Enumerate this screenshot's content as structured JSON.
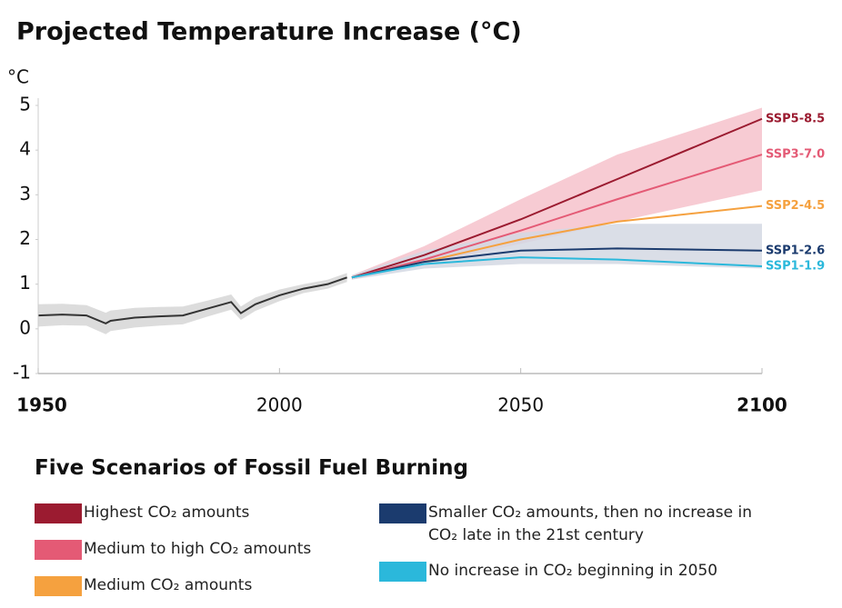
{
  "chart_data": {
    "type": "line",
    "title": "Projected Temperature Increase (°C)",
    "y_unit_label": "°C",
    "xlim": [
      1950,
      2100
    ],
    "ylim": [
      -1,
      5
    ],
    "xticks": [
      1950,
      2000,
      2050,
      2100
    ],
    "yticks": [
      5,
      4,
      3,
      2,
      1,
      0,
      -1
    ],
    "historical": {
      "color": "#333333",
      "band_color": "#dcdcdc",
      "x": [
        1950,
        1955,
        1960,
        1964,
        1965,
        1970,
        1975,
        1980,
        1985,
        1990,
        1992,
        1995,
        2000,
        2005,
        2010,
        2014
      ],
      "values": [
        0.3,
        0.32,
        0.3,
        0.12,
        0.18,
        0.25,
        0.28,
        0.3,
        0.45,
        0.6,
        0.35,
        0.55,
        0.75,
        0.9,
        1.0,
        1.15
      ],
      "lower": [
        0.05,
        0.08,
        0.07,
        -0.12,
        -0.05,
        0.03,
        0.07,
        0.1,
        0.27,
        0.43,
        0.2,
        0.4,
        0.62,
        0.8,
        0.9,
        1.05
      ],
      "upper": [
        0.55,
        0.56,
        0.53,
        0.36,
        0.41,
        0.47,
        0.49,
        0.5,
        0.63,
        0.77,
        0.5,
        0.7,
        0.88,
        1.0,
        1.1,
        1.25
      ]
    },
    "bands": [
      {
        "color": "#f6c2cb",
        "x": [
          2015,
          2030,
          2050,
          2070,
          2100
        ],
        "lower": [
          1.1,
          1.45,
          1.9,
          2.4,
          3.1
        ],
        "upper": [
          1.2,
          1.85,
          2.9,
          3.9,
          4.95
        ]
      },
      {
        "color": "#d4d8e3",
        "x": [
          2015,
          2030,
          2050,
          2070,
          2100
        ],
        "lower": [
          1.1,
          1.35,
          1.45,
          1.45,
          1.35
        ],
        "upper": [
          1.2,
          1.75,
          2.15,
          2.35,
          2.35
        ]
      }
    ],
    "series": [
      {
        "name": "SSP5-8.5",
        "description": "Highest CO₂ amounts",
        "color": "#9b1b30",
        "x": [
          2015,
          2030,
          2050,
          2070,
          2100
        ],
        "values": [
          1.15,
          1.65,
          2.45,
          3.35,
          4.7
        ]
      },
      {
        "name": "SSP3-7.0",
        "description": "Medium to high CO₂ amounts",
        "color": "#e45a75",
        "x": [
          2015,
          2030,
          2050,
          2070,
          2100
        ],
        "values": [
          1.15,
          1.55,
          2.2,
          2.9,
          3.9
        ]
      },
      {
        "name": "SSP2-4.5",
        "description": "Medium CO₂ amounts",
        "color": "#f5a13f",
        "x": [
          2015,
          2030,
          2050,
          2070,
          2100
        ],
        "values": [
          1.15,
          1.5,
          2.0,
          2.4,
          2.75
        ]
      },
      {
        "name": "SSP1-2.6",
        "description": "Smaller CO₂ amounts, then no increase in CO₂ late in the 21st century",
        "color": "#1b3b6e",
        "x": [
          2015,
          2030,
          2050,
          2070,
          2100
        ],
        "values": [
          1.15,
          1.5,
          1.75,
          1.8,
          1.75
        ]
      },
      {
        "name": "SSP1-1.9",
        "description": "No increase in CO₂ beginning in 2050",
        "color": "#2bb8db",
        "x": [
          2015,
          2030,
          2050,
          2070,
          2100
        ],
        "values": [
          1.15,
          1.45,
          1.6,
          1.55,
          1.4
        ]
      }
    ],
    "legend_title": "Five Scenarios of Fossil Fuel Burning"
  }
}
